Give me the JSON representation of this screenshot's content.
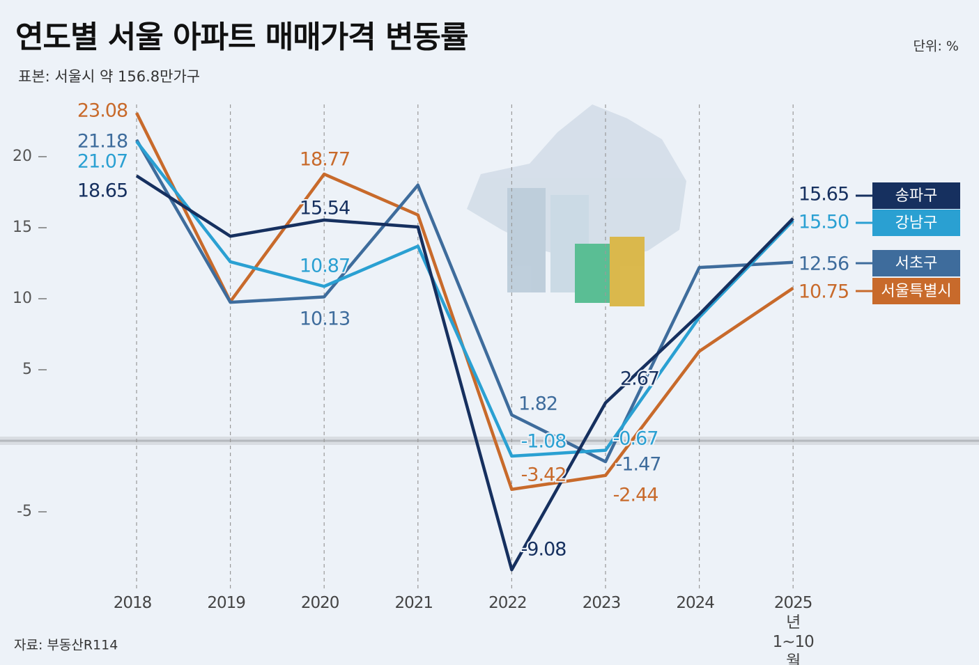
{
  "chart_data": {
    "type": "line",
    "title": "연도별 서울 아파트 매매가격 변동률",
    "subtitle": "표본: 서울시 약 156.8만가구",
    "unit": "단위: %",
    "source": "자료: 부동산R114",
    "categories": [
      "2018",
      "2019",
      "2020",
      "2021",
      "2022",
      "2023",
      "2024",
      "2025년 1~10월"
    ],
    "ylim": [
      -10,
      24
    ],
    "yticks": [
      -5,
      5,
      10,
      15,
      20
    ],
    "series": [
      {
        "name": "서울특별시",
        "color": "#c86a2b",
        "values": [
          23.08,
          9.8,
          18.77,
          15.9,
          -3.42,
          -2.44,
          6.3,
          10.75
        ],
        "value_labels": [
          "23.08",
          null,
          "18.77",
          null,
          "-3.42",
          "-2.44",
          null,
          "10.75"
        ]
      },
      {
        "name": "서초구",
        "color": "#3e6c9c",
        "values": [
          21.18,
          9.75,
          10.13,
          18.0,
          1.82,
          -1.47,
          12.2,
          12.56
        ],
        "value_labels": [
          "21.18",
          null,
          "10.13",
          null,
          "1.82",
          "-1.47",
          null,
          "12.56"
        ]
      },
      {
        "name": "강남구",
        "color": "#2aa0d2",
        "values": [
          21.07,
          12.6,
          10.87,
          13.7,
          -1.08,
          -0.67,
          8.7,
          15.5
        ],
        "value_labels": [
          "21.07",
          null,
          "10.87",
          null,
          "-1.08",
          "-0.67",
          null,
          "15.50"
        ]
      },
      {
        "name": "송파구",
        "color": "#16305f",
        "values": [
          18.65,
          14.4,
          15.54,
          15.05,
          -9.08,
          2.67,
          8.9,
          15.65
        ],
        "value_labels": [
          "18.65",
          null,
          "15.54",
          null,
          "-9.08",
          "2.67",
          null,
          "15.65"
        ]
      }
    ]
  }
}
